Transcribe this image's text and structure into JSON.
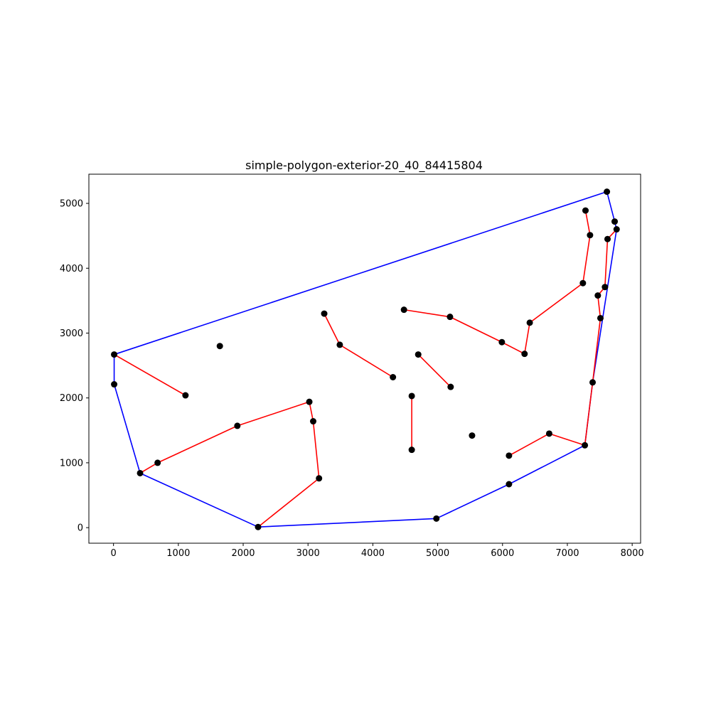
{
  "chart_data": {
    "type": "scatter",
    "title": "simple-polygon-exterior-20_40_84415804",
    "xlabel": "",
    "ylabel": "",
    "xlim": [
      -380,
      8130
    ],
    "ylim": [
      -240,
      5450
    ],
    "xticks": [
      0,
      1000,
      2000,
      3000,
      4000,
      5000,
      6000,
      7000,
      8000
    ],
    "xtick_labels": [
      "0",
      "1000",
      "2000",
      "3000",
      "4000",
      "5000",
      "6000",
      "7000",
      "8000"
    ],
    "yticks": [
      0,
      1000,
      2000,
      3000,
      4000,
      5000
    ],
    "ytick_labels": [
      "0",
      "1000",
      "2000",
      "3000",
      "4000",
      "5000"
    ],
    "grid": false,
    "colors": {
      "hull": "#0000ff",
      "segments": "#ff0000",
      "points": "#000000"
    },
    "points": [
      [
        7610,
        5180
      ],
      [
        7730,
        4720
      ],
      [
        7760,
        4600
      ],
      [
        7280,
        4890
      ],
      [
        7350,
        4510
      ],
      [
        7620,
        4450
      ],
      [
        7240,
        3770
      ],
      [
        7580,
        3710
      ],
      [
        7470,
        3580
      ],
      [
        7510,
        3230
      ],
      [
        6420,
        3160
      ],
      [
        6340,
        2680
      ],
      [
        5990,
        2860
      ],
      [
        5190,
        3250
      ],
      [
        4480,
        3360
      ],
      [
        3250,
        3300
      ],
      [
        3490,
        2820
      ],
      [
        4310,
        2320
      ],
      [
        4700,
        2670
      ],
      [
        5200,
        2170
      ],
      [
        4600,
        2030
      ],
      [
        4600,
        1200
      ],
      [
        5530,
        1420
      ],
      [
        6720,
        1450
      ],
      [
        7270,
        1270
      ],
      [
        6100,
        1110
      ],
      [
        7390,
        2240
      ],
      [
        6100,
        670
      ],
      [
        4980,
        140
      ],
      [
        2230,
        10
      ],
      [
        3170,
        760
      ],
      [
        3080,
        1640
      ],
      [
        3020,
        1940
      ],
      [
        1910,
        1570
      ],
      [
        680,
        1000
      ],
      [
        410,
        840
      ],
      [
        10,
        2210
      ],
      [
        10,
        2670
      ],
      [
        1110,
        2040
      ],
      [
        1640,
        2800
      ]
    ],
    "hull": [
      [
        7610,
        5180
      ],
      [
        7730,
        4720
      ],
      [
        7760,
        4600
      ],
      [
        7390,
        2240
      ],
      [
        7270,
        1270
      ],
      [
        6100,
        670
      ],
      [
        4980,
        140
      ],
      [
        2230,
        10
      ],
      [
        410,
        840
      ],
      [
        10,
        2210
      ],
      [
        10,
        2670
      ],
      [
        7610,
        5180
      ]
    ],
    "segments": [
      [
        [
          10,
          2670
        ],
        [
          1110,
          2040
        ]
      ],
      [
        [
          410,
          840
        ],
        [
          680,
          1000
        ]
      ],
      [
        [
          680,
          1000
        ],
        [
          1910,
          1570
        ]
      ],
      [
        [
          1910,
          1570
        ],
        [
          3020,
          1940
        ]
      ],
      [
        [
          3020,
          1940
        ],
        [
          3080,
          1640
        ]
      ],
      [
        [
          3080,
          1640
        ],
        [
          3170,
          760
        ]
      ],
      [
        [
          3170,
          760
        ],
        [
          2230,
          10
        ]
      ],
      [
        [
          3250,
          3300
        ],
        [
          3490,
          2820
        ]
      ],
      [
        [
          3490,
          2820
        ],
        [
          4310,
          2320
        ]
      ],
      [
        [
          4700,
          2670
        ],
        [
          5200,
          2170
        ]
      ],
      [
        [
          4600,
          2030
        ],
        [
          4600,
          1200
        ]
      ],
      [
        [
          4480,
          3360
        ],
        [
          5190,
          3250
        ]
      ],
      [
        [
          5190,
          3250
        ],
        [
          5990,
          2860
        ]
      ],
      [
        [
          5990,
          2860
        ],
        [
          6340,
          2680
        ]
      ],
      [
        [
          6340,
          2680
        ],
        [
          6420,
          3160
        ]
      ],
      [
        [
          6420,
          3160
        ],
        [
          7240,
          3770
        ]
      ],
      [
        [
          7240,
          3770
        ],
        [
          7350,
          4510
        ]
      ],
      [
        [
          7350,
          4510
        ],
        [
          7280,
          4890
        ]
      ],
      [
        [
          7760,
          4600
        ],
        [
          7620,
          4450
        ]
      ],
      [
        [
          7620,
          4450
        ],
        [
          7580,
          3710
        ]
      ],
      [
        [
          7580,
          3710
        ],
        [
          7470,
          3580
        ]
      ],
      [
        [
          7470,
          3580
        ],
        [
          7510,
          3230
        ]
      ],
      [
        [
          7510,
          3230
        ],
        [
          7390,
          2240
        ]
      ],
      [
        [
          7390,
          2240
        ],
        [
          7270,
          1270
        ]
      ],
      [
        [
          7270,
          1270
        ],
        [
          6720,
          1450
        ]
      ],
      [
        [
          6720,
          1450
        ],
        [
          6100,
          1110
        ]
      ]
    ]
  }
}
